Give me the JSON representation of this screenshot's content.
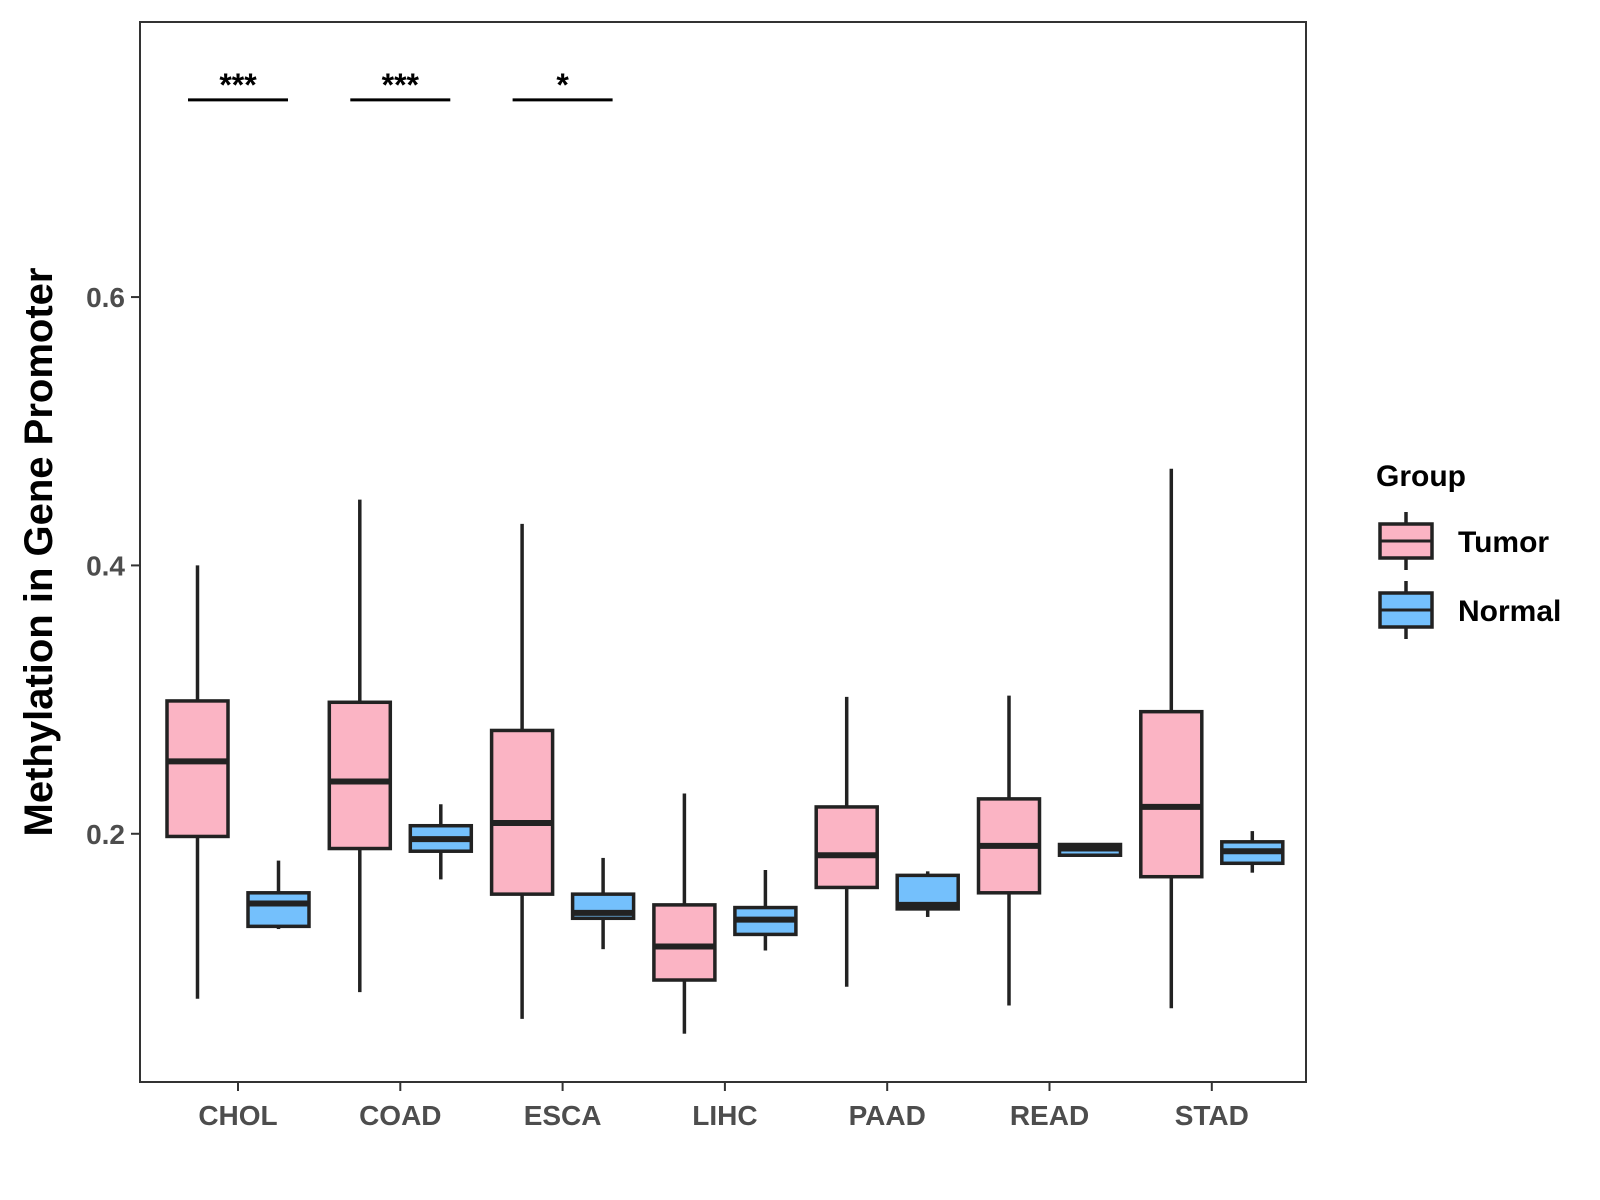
{
  "chart_data": {
    "type": "boxplot",
    "ylabel": "Methylation in Gene Promoter",
    "xlabel": "",
    "ylim": [
      0.015,
      0.805
    ],
    "yticks": [
      0.2,
      0.4,
      0.6
    ],
    "ytick_labels": [
      "0.2",
      "0.4",
      "0.6"
    ],
    "categories": [
      "CHOL",
      "COAD",
      "ESCA",
      "LIHC",
      "PAAD",
      "READ",
      "STAD"
    ],
    "legend": {
      "title": "Group",
      "position": "right",
      "entries": [
        {
          "name": "Tumor",
          "color": "#fbb4c4"
        },
        {
          "name": "Normal",
          "color": "#74c0fc"
        }
      ]
    },
    "series": [
      {
        "name": "Tumor",
        "color": "#fbb4c4",
        "boxes": [
          {
            "min": 0.077,
            "q1": 0.198,
            "median": 0.254,
            "q3": 0.299,
            "max": 0.4
          },
          {
            "min": 0.082,
            "q1": 0.189,
            "median": 0.239,
            "q3": 0.298,
            "max": 0.449
          },
          {
            "min": 0.062,
            "q1": 0.155,
            "median": 0.208,
            "q3": 0.277,
            "max": 0.431
          },
          {
            "min": 0.051,
            "q1": 0.091,
            "median": 0.116,
            "q3": 0.147,
            "max": 0.23
          },
          {
            "min": 0.086,
            "q1": 0.16,
            "median": 0.184,
            "q3": 0.22,
            "max": 0.302
          },
          {
            "min": 0.072,
            "q1": 0.156,
            "median": 0.191,
            "q3": 0.226,
            "max": 0.303
          },
          {
            "min": 0.07,
            "q1": 0.168,
            "median": 0.22,
            "q3": 0.291,
            "max": 0.472
          }
        ]
      },
      {
        "name": "Normal",
        "color": "#74c0fc",
        "boxes": [
          {
            "min": 0.129,
            "q1": 0.131,
            "median": 0.148,
            "q3": 0.156,
            "max": 0.18
          },
          {
            "min": 0.166,
            "q1": 0.187,
            "median": 0.196,
            "q3": 0.206,
            "max": 0.222
          },
          {
            "min": 0.114,
            "q1": 0.137,
            "median": 0.141,
            "q3": 0.155,
            "max": 0.182
          },
          {
            "min": 0.113,
            "q1": 0.125,
            "median": 0.136,
            "q3": 0.145,
            "max": 0.173
          },
          {
            "min": 0.138,
            "q1": 0.144,
            "median": 0.147,
            "q3": 0.169,
            "max": 0.172
          },
          {
            "min": 0.184,
            "q1": 0.184,
            "median": 0.189,
            "q3": 0.192,
            "max": 0.193
          },
          {
            "min": 0.171,
            "q1": 0.178,
            "median": 0.187,
            "q3": 0.194,
            "max": 0.202
          }
        ]
      }
    ],
    "annotations": [
      {
        "category": "CHOL",
        "text": "***",
        "y": 0.747
      },
      {
        "category": "COAD",
        "text": "***",
        "y": 0.747
      },
      {
        "category": "ESCA",
        "text": "*",
        "y": 0.747
      }
    ]
  }
}
